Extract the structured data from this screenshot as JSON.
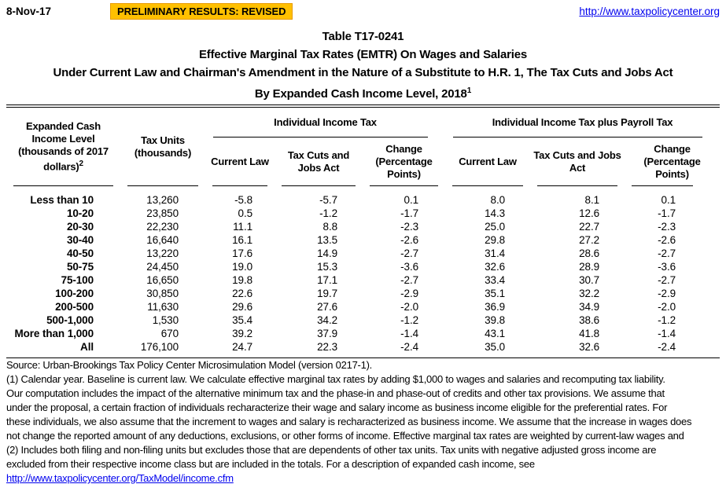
{
  "header": {
    "date": "8-Nov-17",
    "banner": "PRELIMINARY RESULTS: REVISED",
    "site_url": "http://www.taxpolicycenter.org"
  },
  "title": {
    "line1": "Table T17-0241",
    "line2": "Effective Marginal Tax Rates (EMTR) On Wages and Salaries",
    "line3": "Under Current Law and Chairman's Amendment in the Nature of a Substitute to H.R. 1, The Tax Cuts and Jobs Act",
    "line4": "By Expanded Cash Income Level, 2018",
    "line4_superscript": "1"
  },
  "table": {
    "income_header": "Expanded Cash Income Level (thousands of 2017 dollars)",
    "income_header_superscript": "2",
    "tax_units_header": "Tax Units (thousands)",
    "group1_header": "Individual Income Tax",
    "group2_header": "Individual Income Tax plus Payroll Tax",
    "sub_headers": {
      "current_law": "Current Law",
      "tcja": "Tax Cuts and Jobs Act",
      "change": "Change (Percentage Points)"
    },
    "rows": [
      {
        "level": "Less than 10",
        "tax_units": "13,260",
        "iit_current_law": "-5.8",
        "iit_tcja": "-5.7",
        "iit_change": "0.1",
        "payroll_current_law": "8.0",
        "payroll_tcja": "8.1",
        "payroll_change": "0.1"
      },
      {
        "level": "10-20",
        "tax_units": "23,850",
        "iit_current_law": "0.5",
        "iit_tcja": "-1.2",
        "iit_change": "-1.7",
        "payroll_current_law": "14.3",
        "payroll_tcja": "12.6",
        "payroll_change": "-1.7"
      },
      {
        "level": "20-30",
        "tax_units": "22,230",
        "iit_current_law": "11.1",
        "iit_tcja": "8.8",
        "iit_change": "-2.3",
        "payroll_current_law": "25.0",
        "payroll_tcja": "22.7",
        "payroll_change": "-2.3"
      },
      {
        "level": "30-40",
        "tax_units": "16,640",
        "iit_current_law": "16.1",
        "iit_tcja": "13.5",
        "iit_change": "-2.6",
        "payroll_current_law": "29.8",
        "payroll_tcja": "27.2",
        "payroll_change": "-2.6"
      },
      {
        "level": "40-50",
        "tax_units": "13,220",
        "iit_current_law": "17.6",
        "iit_tcja": "14.9",
        "iit_change": "-2.7",
        "payroll_current_law": "31.4",
        "payroll_tcja": "28.6",
        "payroll_change": "-2.7"
      },
      {
        "level": "50-75",
        "tax_units": "24,450",
        "iit_current_law": "19.0",
        "iit_tcja": "15.3",
        "iit_change": "-3.6",
        "payroll_current_law": "32.6",
        "payroll_tcja": "28.9",
        "payroll_change": "-3.6"
      },
      {
        "level": "75-100",
        "tax_units": "16,650",
        "iit_current_law": "19.8",
        "iit_tcja": "17.1",
        "iit_change": "-2.7",
        "payroll_current_law": "33.4",
        "payroll_tcja": "30.7",
        "payroll_change": "-2.7"
      },
      {
        "level": "100-200",
        "tax_units": "30,850",
        "iit_current_law": "22.6",
        "iit_tcja": "19.7",
        "iit_change": "-2.9",
        "payroll_current_law": "35.1",
        "payroll_tcja": "32.2",
        "payroll_change": "-2.9"
      },
      {
        "level": "200-500",
        "tax_units": "11,630",
        "iit_current_law": "29.6",
        "iit_tcja": "27.6",
        "iit_change": "-2.0",
        "payroll_current_law": "36.9",
        "payroll_tcja": "34.9",
        "payroll_change": "-2.0"
      },
      {
        "level": "500-1,000",
        "tax_units": "1,530",
        "iit_current_law": "35.4",
        "iit_tcja": "34.2",
        "iit_change": "-1.2",
        "payroll_current_law": "39.8",
        "payroll_tcja": "38.6",
        "payroll_change": "-1.2"
      },
      {
        "level": "More than 1,000",
        "tax_units": "670",
        "iit_current_law": "39.2",
        "iit_tcja": "37.9",
        "iit_change": "-1.4",
        "payroll_current_law": "43.1",
        "payroll_tcja": "41.8",
        "payroll_change": "-1.4"
      },
      {
        "level": "All",
        "tax_units": "176,100",
        "iit_current_law": "24.7",
        "iit_tcja": "22.3",
        "iit_change": "-2.4",
        "payroll_current_law": "35.0",
        "payroll_tcja": "32.6",
        "payroll_change": "-2.4"
      }
    ]
  },
  "footer": {
    "source_line": "Source: Urban-Brookings Tax Policy Center Microsimulation Model (version 0217-1).",
    "note_lines": [
      "(1) Calendar year. Baseline is current law. We calculate effective marginal tax rates by adding $1,000 to wages and salaries and recomputing tax liability.",
      "Our computation includes the impact of the alternative minimum tax and the phase-in and phase-out of credits and other tax provisions. We assume that",
      "under the proposal, a certain fraction of individuals recharacterize their wage and salary income as business income eligible for the preferential rates. For",
      "these individuals, we also assume that the increment to wages and salary is recharacterized as business income. We assume that the increase in wages does",
      "not change the reported amount of any deductions, exclusions, or other forms of income. Effective marginal tax rates are weighted by current-law wages and",
      "(2) Includes both filing and non-filing units but excludes those that are dependents of other tax units. Tax units with negative adjusted gross income are",
      "excluded from their respective income class but are included in the totals. For a description of expanded cash income, see"
    ],
    "link": "http://www.taxpolicycenter.org/TaxModel/income.cfm"
  },
  "colors": {
    "banner_bg": "#FFC000",
    "link_blue": "#0000EE",
    "text": "#000000"
  }
}
